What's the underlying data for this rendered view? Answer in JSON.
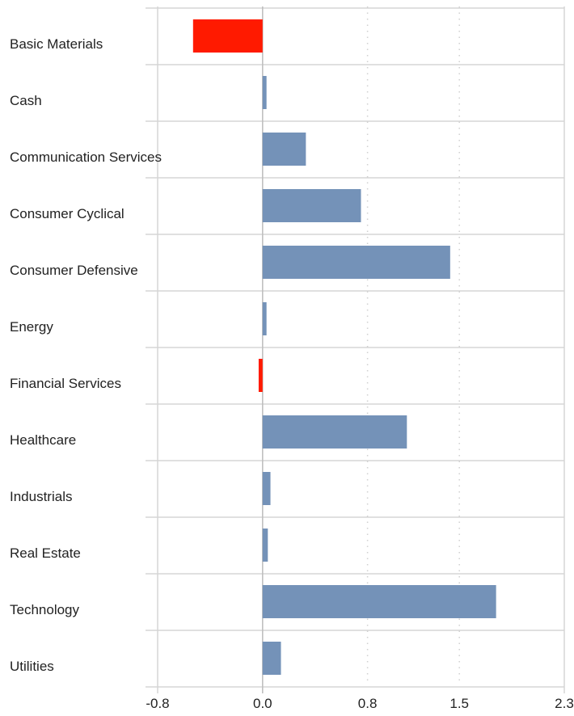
{
  "chart_data": {
    "type": "bar",
    "orientation": "horizontal",
    "categories": [
      "Basic Materials",
      "Cash",
      "Communication Services",
      "Consumer Cyclical",
      "Consumer Defensive",
      "Energy",
      "Financial Services",
      "Healthcare",
      "Industrials",
      "Real Estate",
      "Technology",
      "Utilities"
    ],
    "values": [
      -0.53,
      0.03,
      0.33,
      0.75,
      1.43,
      0.03,
      -0.03,
      1.1,
      0.06,
      0.04,
      1.78,
      0.14
    ],
    "xlim": [
      -0.8,
      2.3
    ],
    "xticks": [
      "-0.8",
      "0.0",
      "0.8",
      "1.5",
      "2.3"
    ],
    "xtick_values": [
      -0.8,
      0.0,
      0.8,
      1.5,
      2.3
    ],
    "colors": {
      "positive": "#7492b8",
      "negative": "#ff1a00",
      "grid": "#d6d6d6",
      "dotted_grid": "#d0d0d0"
    },
    "title": "",
    "xlabel": "",
    "ylabel": ""
  }
}
